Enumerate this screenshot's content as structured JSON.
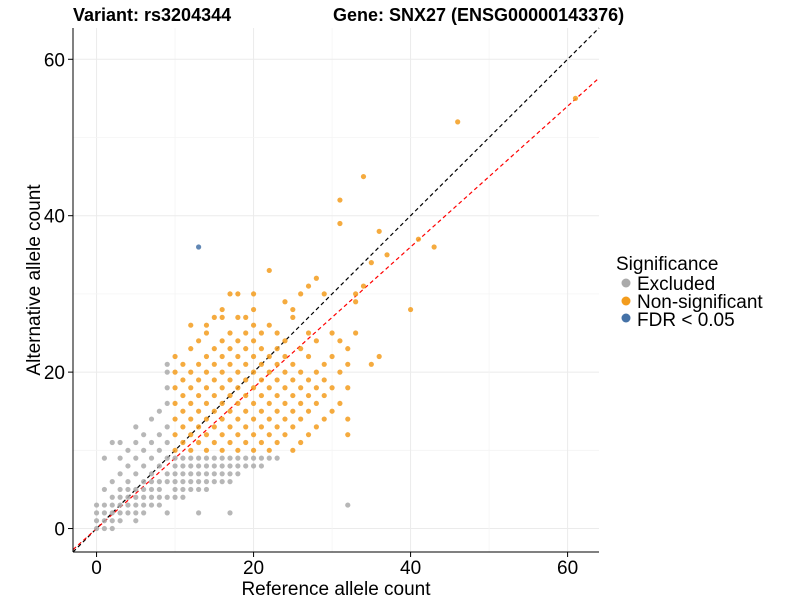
{
  "chart_data": {
    "type": "scatter",
    "title_left": "Variant: rs3204344",
    "title_right": "Gene: SNX27 (ENSG00000143376)",
    "xlabel": "Reference allele count",
    "ylabel": "Alternative allele count",
    "xlim": [
      -3,
      64
    ],
    "ylim": [
      -3,
      64
    ],
    "x_ticks": [
      0,
      20,
      40,
      60
    ],
    "y_ticks": [
      0,
      20,
      40,
      60
    ],
    "grid": true,
    "legend": {
      "title": "Significance",
      "position": "right",
      "entries": [
        {
          "key": "excluded",
          "label": "Excluded",
          "color": "#aaaaaa"
        },
        {
          "key": "nonsig",
          "label": "Non-significant",
          "color": "#f39c1d"
        },
        {
          "key": "fdr",
          "label": "FDR < 0.05",
          "color": "#4572a7"
        }
      ]
    },
    "reference_lines": [
      {
        "name": "identity",
        "slope": 1.0,
        "intercept": 0,
        "color": "#000000",
        "style": "dashed"
      },
      {
        "name": "fit",
        "slope": 0.9,
        "intercept": 0,
        "color": "#ff0000",
        "style": "dashed"
      }
    ],
    "series": [
      {
        "key": "excluded",
        "color": "#aaaaaa",
        "points": [
          [
            0,
            0
          ],
          [
            0,
            1
          ],
          [
            0,
            2
          ],
          [
            0,
            3
          ],
          [
            1,
            0
          ],
          [
            1,
            1
          ],
          [
            1,
            2
          ],
          [
            1,
            3
          ],
          [
            1,
            5
          ],
          [
            2,
            0
          ],
          [
            2,
            1
          ],
          [
            2,
            2
          ],
          [
            2,
            3
          ],
          [
            2,
            4
          ],
          [
            2,
            6
          ],
          [
            3,
            1
          ],
          [
            3,
            2
          ],
          [
            3,
            3
          ],
          [
            3,
            4
          ],
          [
            3,
            5
          ],
          [
            3,
            7
          ],
          [
            3,
            9
          ],
          [
            3,
            11
          ],
          [
            4,
            2
          ],
          [
            4,
            3
          ],
          [
            4,
            4
          ],
          [
            4,
            5
          ],
          [
            4,
            6
          ],
          [
            4,
            8
          ],
          [
            4,
            10
          ],
          [
            5,
            1
          ],
          [
            5,
            2
          ],
          [
            5,
            3
          ],
          [
            5,
            4
          ],
          [
            5,
            5
          ],
          [
            5,
            7
          ],
          [
            5,
            9
          ],
          [
            5,
            11
          ],
          [
            5,
            13
          ],
          [
            6,
            2
          ],
          [
            6,
            3
          ],
          [
            6,
            4
          ],
          [
            6,
            5
          ],
          [
            6,
            6
          ],
          [
            6,
            8
          ],
          [
            6,
            10
          ],
          [
            6,
            12
          ],
          [
            7,
            3
          ],
          [
            7,
            4
          ],
          [
            7,
            5
          ],
          [
            7,
            6
          ],
          [
            7,
            7
          ],
          [
            7,
            9
          ],
          [
            7,
            11
          ],
          [
            7,
            14
          ],
          [
            8,
            3
          ],
          [
            8,
            4
          ],
          [
            8,
            5
          ],
          [
            8,
            6
          ],
          [
            8,
            8
          ],
          [
            8,
            10
          ],
          [
            8,
            12
          ],
          [
            8,
            15
          ],
          [
            9,
            2
          ],
          [
            9,
            4
          ],
          [
            9,
            6
          ],
          [
            9,
            7
          ],
          [
            9,
            9
          ],
          [
            9,
            11
          ],
          [
            9,
            13
          ],
          [
            9,
            16
          ],
          [
            9,
            18
          ],
          [
            9,
            20
          ],
          [
            9,
            21
          ],
          [
            10,
            4
          ],
          [
            10,
            5
          ],
          [
            10,
            6
          ],
          [
            10,
            7
          ],
          [
            10,
            8
          ],
          [
            10,
            9
          ],
          [
            11,
            4
          ],
          [
            11,
            5
          ],
          [
            11,
            6
          ],
          [
            11,
            7
          ],
          [
            11,
            8
          ],
          [
            11,
            9
          ],
          [
            12,
            5
          ],
          [
            12,
            6
          ],
          [
            12,
            7
          ],
          [
            12,
            8
          ],
          [
            12,
            9
          ],
          [
            13,
            5
          ],
          [
            13,
            6
          ],
          [
            13,
            7
          ],
          [
            13,
            8
          ],
          [
            13,
            9
          ],
          [
            14,
            5
          ],
          [
            14,
            6
          ],
          [
            14,
            7
          ],
          [
            14,
            8
          ],
          [
            14,
            9
          ],
          [
            15,
            6
          ],
          [
            15,
            7
          ],
          [
            15,
            8
          ],
          [
            15,
            9
          ],
          [
            16,
            6
          ],
          [
            16,
            7
          ],
          [
            16,
            8
          ],
          [
            16,
            9
          ],
          [
            17,
            2
          ],
          [
            17,
            6
          ],
          [
            17,
            7
          ],
          [
            17,
            8
          ],
          [
            17,
            9
          ],
          [
            18,
            7
          ],
          [
            18,
            8
          ],
          [
            18,
            9
          ],
          [
            19,
            8
          ],
          [
            19,
            9
          ],
          [
            20,
            8
          ],
          [
            20,
            9
          ],
          [
            21,
            8
          ],
          [
            21,
            9
          ],
          [
            22,
            9
          ],
          [
            23,
            9
          ],
          [
            13,
            2
          ],
          [
            1,
            9
          ],
          [
            2,
            11
          ],
          [
            32,
            3
          ]
        ]
      },
      {
        "key": "nonsig",
        "color": "#f39c1d",
        "points": [
          [
            10,
            10
          ],
          [
            10,
            12
          ],
          [
            10,
            14
          ],
          [
            10,
            16
          ],
          [
            10,
            18
          ],
          [
            10,
            20
          ],
          [
            10,
            22
          ],
          [
            11,
            11
          ],
          [
            11,
            13
          ],
          [
            11,
            15
          ],
          [
            11,
            17
          ],
          [
            11,
            19
          ],
          [
            11,
            21
          ],
          [
            12,
            10
          ],
          [
            12,
            12
          ],
          [
            12,
            14
          ],
          [
            12,
            16
          ],
          [
            12,
            18
          ],
          [
            12,
            20
          ],
          [
            12,
            23
          ],
          [
            13,
            11
          ],
          [
            13,
            13
          ],
          [
            13,
            15
          ],
          [
            13,
            17
          ],
          [
            13,
            19
          ],
          [
            13,
            21
          ],
          [
            13,
            24
          ],
          [
            14,
            10
          ],
          [
            14,
            12
          ],
          [
            14,
            14
          ],
          [
            14,
            16
          ],
          [
            14,
            18
          ],
          [
            14,
            20
          ],
          [
            14,
            22
          ],
          [
            14,
            26
          ],
          [
            15,
            11
          ],
          [
            15,
            13
          ],
          [
            15,
            15
          ],
          [
            15,
            17
          ],
          [
            15,
            19
          ],
          [
            15,
            21
          ],
          [
            15,
            23
          ],
          [
            15,
            27
          ],
          [
            16,
            10
          ],
          [
            16,
            12
          ],
          [
            16,
            14
          ],
          [
            16,
            16
          ],
          [
            16,
            18
          ],
          [
            16,
            20
          ],
          [
            16,
            22
          ],
          [
            16,
            24
          ],
          [
            16,
            28
          ],
          [
            17,
            11
          ],
          [
            17,
            13
          ],
          [
            17,
            15
          ],
          [
            17,
            17
          ],
          [
            17,
            19
          ],
          [
            17,
            21
          ],
          [
            17,
            23
          ],
          [
            17,
            25
          ],
          [
            17,
            30
          ],
          [
            18,
            10
          ],
          [
            18,
            12
          ],
          [
            18,
            14
          ],
          [
            18,
            16
          ],
          [
            18,
            18
          ],
          [
            18,
            20
          ],
          [
            18,
            22
          ],
          [
            18,
            24
          ],
          [
            18,
            30
          ],
          [
            19,
            11
          ],
          [
            19,
            13
          ],
          [
            19,
            15
          ],
          [
            19,
            17
          ],
          [
            19,
            19
          ],
          [
            19,
            21
          ],
          [
            19,
            23
          ],
          [
            19,
            25
          ],
          [
            19,
            27
          ],
          [
            20,
            10
          ],
          [
            20,
            12
          ],
          [
            20,
            14
          ],
          [
            20,
            16
          ],
          [
            20,
            18
          ],
          [
            20,
            20
          ],
          [
            20,
            22
          ],
          [
            20,
            24
          ],
          [
            20,
            26
          ],
          [
            20,
            28
          ],
          [
            21,
            11
          ],
          [
            21,
            13
          ],
          [
            21,
            15
          ],
          [
            21,
            17
          ],
          [
            21,
            19
          ],
          [
            21,
            21
          ],
          [
            21,
            23
          ],
          [
            21,
            25
          ],
          [
            22,
            10
          ],
          [
            22,
            12
          ],
          [
            22,
            14
          ],
          [
            22,
            16
          ],
          [
            22,
            18
          ],
          [
            22,
            20
          ],
          [
            22,
            22
          ],
          [
            22,
            26
          ],
          [
            22,
            33
          ],
          [
            23,
            11
          ],
          [
            23,
            13
          ],
          [
            23,
            15
          ],
          [
            23,
            17
          ],
          [
            23,
            19
          ],
          [
            23,
            21
          ],
          [
            23,
            23
          ],
          [
            23,
            25
          ],
          [
            24,
            12
          ],
          [
            24,
            14
          ],
          [
            24,
            16
          ],
          [
            24,
            18
          ],
          [
            24,
            20
          ],
          [
            24,
            22
          ],
          [
            24,
            24
          ],
          [
            24,
            29
          ],
          [
            25,
            10
          ],
          [
            25,
            13
          ],
          [
            25,
            15
          ],
          [
            25,
            17
          ],
          [
            25,
            19
          ],
          [
            25,
            21
          ],
          [
            25,
            27
          ],
          [
            26,
            11
          ],
          [
            26,
            14
          ],
          [
            26,
            16
          ],
          [
            26,
            18
          ],
          [
            26,
            20
          ],
          [
            26,
            23
          ],
          [
            26,
            30
          ],
          [
            27,
            12
          ],
          [
            27,
            15
          ],
          [
            27,
            17
          ],
          [
            27,
            19
          ],
          [
            27,
            22
          ],
          [
            27,
            25
          ],
          [
            28,
            13
          ],
          [
            28,
            16
          ],
          [
            28,
            18
          ],
          [
            28,
            20
          ],
          [
            28,
            24
          ],
          [
            28,
            32
          ],
          [
            29,
            14
          ],
          [
            29,
            17
          ],
          [
            29,
            19
          ],
          [
            29,
            21
          ],
          [
            29,
            30
          ],
          [
            30,
            15
          ],
          [
            30,
            18
          ],
          [
            30,
            22
          ],
          [
            31,
            16
          ],
          [
            31,
            20
          ],
          [
            31,
            24
          ],
          [
            31,
            39
          ],
          [
            31,
            42
          ],
          [
            32,
            12
          ],
          [
            32,
            14
          ],
          [
            32,
            18
          ],
          [
            32,
            21
          ],
          [
            32,
            23
          ],
          [
            33,
            25
          ],
          [
            33,
            30
          ],
          [
            34,
            45
          ],
          [
            34,
            31
          ],
          [
            35,
            21
          ],
          [
            35,
            34
          ],
          [
            36,
            22
          ],
          [
            36,
            38
          ],
          [
            37,
            35
          ],
          [
            40,
            28
          ],
          [
            41,
            37
          ],
          [
            43,
            36
          ],
          [
            46,
            52
          ],
          [
            61,
            55
          ],
          [
            25,
            28
          ],
          [
            30,
            25
          ],
          [
            20,
            30
          ],
          [
            18,
            27
          ],
          [
            16,
            27
          ],
          [
            14,
            25
          ],
          [
            12,
            26
          ],
          [
            27,
            31
          ],
          [
            33,
            29
          ]
        ]
      },
      {
        "key": "fdr",
        "color": "#4572a7",
        "points": [
          [
            13,
            36
          ]
        ]
      }
    ]
  }
}
